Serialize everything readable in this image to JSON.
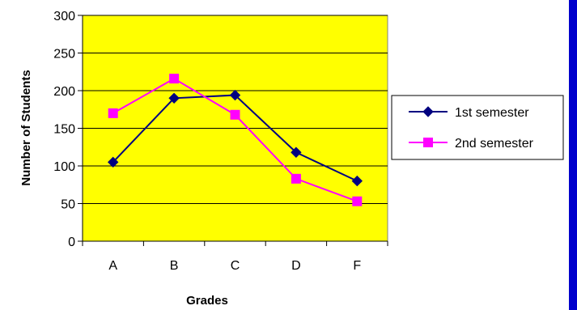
{
  "chart_data": {
    "type": "line",
    "title": "",
    "xlabel": "Grades",
    "ylabel": "Number of Students",
    "categories": [
      "A",
      "B",
      "C",
      "D",
      "F"
    ],
    "ylim": [
      0,
      300
    ],
    "yticks": [
      0,
      50,
      100,
      150,
      200,
      250,
      300
    ],
    "grid": true,
    "legend_position": "right",
    "plot_background": "#FFFF00",
    "series": [
      {
        "name": "1st semester",
        "values": [
          105,
          190,
          194,
          118,
          80
        ],
        "color": "#000080",
        "marker": "diamond"
      },
      {
        "name": "2nd semester",
        "values": [
          170,
          216,
          168,
          83,
          53
        ],
        "color": "#FF00FF",
        "marker": "square"
      }
    ]
  },
  "colors": {
    "frame_bar": "#0000CC"
  }
}
